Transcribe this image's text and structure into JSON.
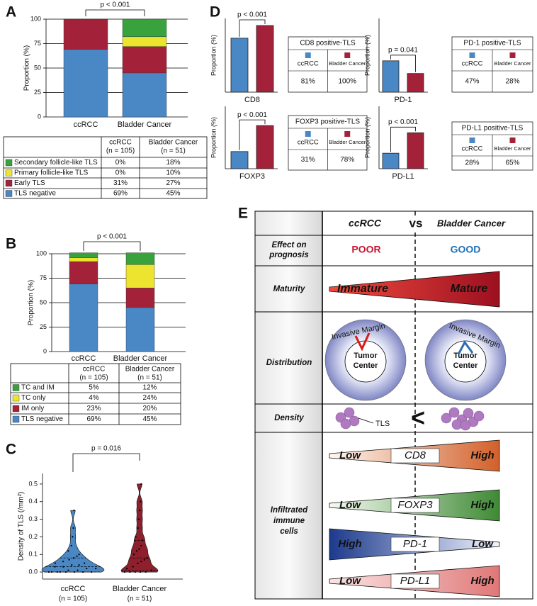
{
  "panel_labels": [
    "A",
    "B",
    "C",
    "D",
    "E"
  ],
  "chart_data": [
    {
      "type": "stacked-bar",
      "ylabel": "Proportion (%)",
      "annotation": "p < 0.001",
      "categories": [
        "ccRCC",
        "Bladder Cancer"
      ],
      "ylim": [
        0,
        100
      ],
      "yticks": [
        0,
        25,
        50,
        75,
        100
      ],
      "grid": true,
      "series": [
        {
          "name": "TLS negative",
          "color": "#4a87c5",
          "values": [
            69,
            45
          ],
          "value_labels": [
            "69%",
            "45%"
          ]
        },
        {
          "name": "Early TLS",
          "color": "#a3223a",
          "values": [
            31,
            27
          ],
          "value_labels": [
            "31%",
            "27%"
          ]
        },
        {
          "name": "Primary follicle-like TLS",
          "color": "#ede42f",
          "values": [
            0,
            10
          ],
          "value_labels": [
            "0%",
            "10%"
          ]
        },
        {
          "name": "Secondary follicle-like TLS",
          "color": "#38a23c",
          "values": [
            0,
            18
          ],
          "value_labels": [
            "0%",
            "18%"
          ]
        }
      ]
    },
    {
      "type": "stacked-bar",
      "ylabel": "Proportion (%)",
      "annotation": "p < 0.001",
      "categories": [
        "ccRCC",
        "Bladder Cancer"
      ],
      "ylim": [
        0,
        100
      ],
      "yticks": [
        0,
        25,
        50,
        75,
        100
      ],
      "grid": true,
      "series": [
        {
          "name": "TLS negative",
          "color": "#4a87c5",
          "values": [
            69,
            45
          ],
          "value_labels": [
            "69%",
            "45%"
          ]
        },
        {
          "name": "IM only",
          "color": "#a3223a",
          "values": [
            23,
            20
          ],
          "value_labels": [
            "23%",
            "20%"
          ]
        },
        {
          "name": "TC only",
          "color": "#ede42f",
          "values": [
            4,
            24
          ],
          "value_labels": [
            "4%",
            "24%"
          ]
        },
        {
          "name": "TC and IM",
          "color": "#38a23c",
          "values": [
            5,
            12
          ],
          "value_labels": [
            "5%",
            "12%"
          ]
        }
      ]
    },
    {
      "type": "violin",
      "ylabel": "Density of TLS  (/mm²)",
      "annotation": "p = 0.016",
      "categories": [
        "ccRCC",
        "Bladder Cancer"
      ],
      "category_notes": [
        "(n = 105)",
        "(n = 51)"
      ],
      "colors": [
        "#4a87c5",
        "#8e1f2d"
      ],
      "ylim": [
        -0.04,
        0.56
      ],
      "yticks": [
        {
          "value": 0,
          "label": "0.0"
        },
        0.1,
        0.2,
        0.3,
        0.4,
        0.5
      ],
      "points": [
        [
          0,
          0,
          0,
          0,
          0,
          0,
          0,
          0,
          0.01,
          0.01,
          0.02,
          0.02,
          0.03,
          0.03,
          0.04,
          0.04,
          0.05,
          0.05,
          0.06,
          0.07,
          0.08,
          0.09,
          0.1,
          0.12,
          0.15,
          0.2,
          0.25,
          0.35
        ],
        [
          0,
          0,
          0,
          0,
          0,
          0.01,
          0.02,
          0.03,
          0.05,
          0.06,
          0.07,
          0.08,
          0.1,
          0.12,
          0.13,
          0.15,
          0.18,
          0.2,
          0.25,
          0.3,
          0.35,
          0.4,
          0.5
        ]
      ]
    },
    {
      "type": "bar",
      "xlabel": "CD8",
      "ylabel": "Proportion (%)",
      "annotation": "p < 0.001",
      "table_title": "CD8 positive-TLS",
      "categories": [
        "ccRCC",
        "Bladder Cancer"
      ],
      "colors": [
        "#4a87c5",
        "#a3223a"
      ],
      "ylim": [
        0,
        100
      ],
      "values": [
        81,
        100
      ],
      "value_labels": [
        "81%",
        "100%"
      ]
    },
    {
      "type": "bar",
      "xlabel": "PD-1",
      "ylabel": "Proportion (%)",
      "annotation": "p = 0.041",
      "table_title": "PD-1 positive-TLS",
      "categories": [
        "ccRCC",
        "Bladder Cancer"
      ],
      "colors": [
        "#4a87c5",
        "#a3223a"
      ],
      "ylim": [
        0,
        100
      ],
      "values": [
        47,
        28
      ],
      "value_labels": [
        "47%",
        "28%"
      ]
    },
    {
      "type": "bar",
      "xlabel": "FOXP3",
      "ylabel": "Proportion (%)",
      "annotation": "p < 0.001",
      "table_title": "FOXP3 positive-TLS",
      "categories": [
        "ccRCC",
        "Bladder Cancer"
      ],
      "colors": [
        "#4a87c5",
        "#a3223a"
      ],
      "ylim": [
        0,
        100
      ],
      "values": [
        31,
        78
      ],
      "value_labels": [
        "31%",
        "78%"
      ]
    },
    {
      "type": "bar",
      "xlabel": "PD-L1",
      "ylabel": "Proportion (%)",
      "annotation": "p < 0.001",
      "table_title": "PD-L1 positive-TLS",
      "categories": [
        "ccRCC",
        "Bladder Cancer"
      ],
      "colors": [
        "#4a87c5",
        "#a3223a"
      ],
      "ylim": [
        0,
        100
      ],
      "values": [
        28,
        65
      ],
      "value_labels": [
        "28%",
        "65%"
      ]
    }
  ],
  "tables": [
    {
      "col_headers": [
        [
          "ccRCC",
          "(n = 105)"
        ],
        [
          "Bladder Cancer",
          "(n = 51)"
        ]
      ]
    },
    {
      "col_headers": [
        [
          "ccRCC",
          "(n = 105)"
        ],
        [
          "Bladder Cancer",
          "(n = 51)"
        ]
      ]
    }
  ],
  "diagram": {
    "header": {
      "left": "ccRCC",
      "vs": "vs",
      "right": "Bladder Cancer"
    },
    "prognosis": {
      "label": [
        "Effect on",
        "prognosis"
      ],
      "left": "POOR",
      "right": "GOOD"
    },
    "maturity": {
      "label": "Maturity",
      "left": "Immature",
      "right": "Mature"
    },
    "distribution": {
      "label": "Distribution",
      "margin": [
        "Invasive Margin",
        "Invasive Margin"
      ],
      "center": [
        [
          "Tumor",
          "Center"
        ],
        [
          "Tumor",
          "Center"
        ]
      ]
    },
    "density": {
      "label": "Density",
      "tls": "TLS",
      "comparison": "<"
    },
    "immune": {
      "label": [
        "Infiltrated",
        "immune",
        "cells"
      ],
      "markers": [
        {
          "name": "CD8",
          "left": "Low",
          "right": "High"
        },
        {
          "name": "FOXP3",
          "left": "Low",
          "right": "High"
        },
        {
          "name": "PD-1",
          "left": "High",
          "right": "Low"
        },
        {
          "name": "PD-L1",
          "left": "Low",
          "right": "High"
        }
      ]
    }
  }
}
